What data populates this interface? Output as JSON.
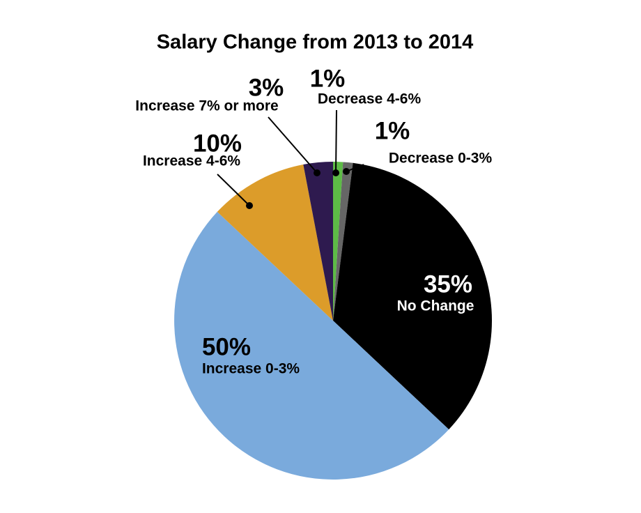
{
  "chart_data": {
    "type": "pie",
    "title": "Salary Change from 2013 to 2014",
    "categories": [
      "Decrease 4-6%",
      "Decrease 0-3%",
      "No Change",
      "Increase 0-3%",
      "Increase 4-6%",
      "Increase 7% or more"
    ],
    "values": [
      1,
      1,
      35,
      50,
      10,
      3
    ],
    "value_labels": [
      "1%",
      "1%",
      "35%",
      "50%",
      "10%",
      "3%"
    ],
    "colors": [
      "#5dbb46",
      "#666666",
      "#000000",
      "#7aaadc",
      "#dc9c2a",
      "#2e1a4f"
    ]
  }
}
